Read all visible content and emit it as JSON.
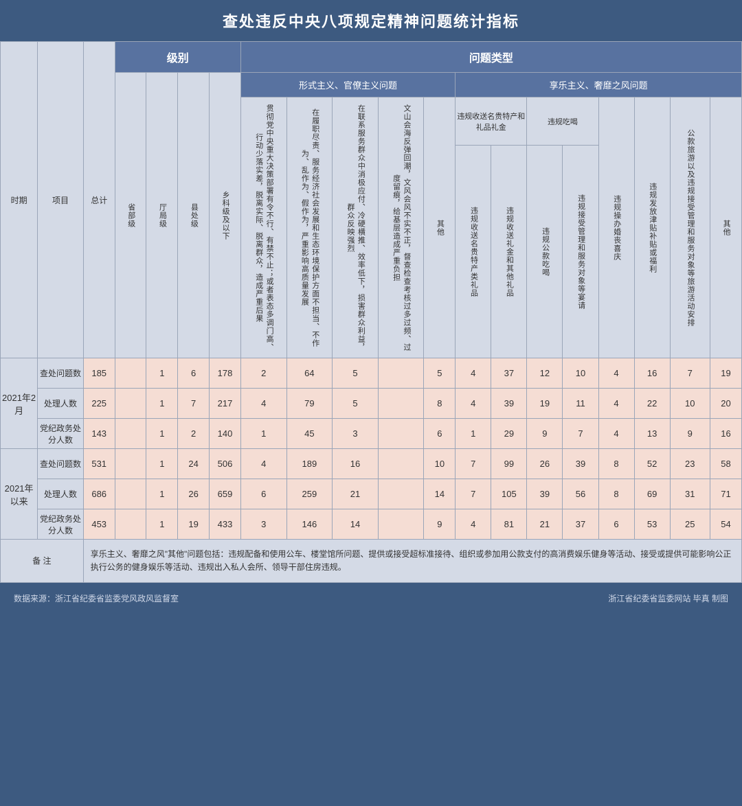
{
  "title": "查处违反中央八项规定精神问题统计指标",
  "headers": {
    "period": "时期",
    "item": "项目",
    "total": "总计",
    "level_group": "级别",
    "type_group": "问题类型",
    "sub_formalism": "形式主义、官僚主义问题",
    "sub_hedonism": "享乐主义、奢靡之风问题",
    "lv_prov": "省部级",
    "lv_bureau": "厅局级",
    "lv_county": "县处级",
    "lv_town": "乡科级及以下",
    "c1": "贯彻党中央重大决策部署有令不行、有禁不止；或者表态多调门高、行动少落实差，脱离实际、脱离群众，造成严重后果",
    "c2": "在履职尽责、服务经济社会发展和生态环境保护方面不担当、不作为、乱作为、假作为，严重影响高质量发展",
    "c3": "在联系服务群众中消极应付、冷硬横推、效率低下，损害群众利益，群众反映强烈",
    "c4": "文山会海反弹回潮，文风会风不实不正，督查检查考核过多过频、过度留痕，给基层造成严重负担",
    "c5": "其他",
    "gift_group": "违规收送名贵特产和礼品礼金",
    "c6": "违规收送名贵特产类礼品",
    "c7": "违规收送礼金和其他礼品",
    "eat_group": "违规吃喝",
    "c8": "违规公款吃喝",
    "c9": "违规接受管理和服务对象等宴请",
    "c10": "违规操办婚丧喜庆",
    "c11": "违规发放津贴补贴或福利",
    "c12": "公款旅游以及违规接受管理和服务对象等旅游活动安排",
    "c13": "其他"
  },
  "periods": [
    {
      "label": "2021年2月",
      "rows": [
        {
          "name": "查处问题数",
          "vals": [
            "185",
            "",
            "1",
            "6",
            "178",
            "2",
            "64",
            "5",
            "",
            "5",
            "4",
            "37",
            "12",
            "10",
            "4",
            "16",
            "7",
            "19"
          ]
        },
        {
          "name": "处理人数",
          "vals": [
            "225",
            "",
            "1",
            "7",
            "217",
            "4",
            "79",
            "5",
            "",
            "8",
            "4",
            "39",
            "19",
            "11",
            "4",
            "22",
            "10",
            "20"
          ]
        },
        {
          "name": "党纪政务处分人数",
          "vals": [
            "143",
            "",
            "1",
            "2",
            "140",
            "1",
            "45",
            "3",
            "",
            "6",
            "1",
            "29",
            "9",
            "7",
            "4",
            "13",
            "9",
            "16"
          ]
        }
      ]
    },
    {
      "label": "2021年以来",
      "rows": [
        {
          "name": "查处问题数",
          "vals": [
            "531",
            "",
            "1",
            "24",
            "506",
            "4",
            "189",
            "16",
            "",
            "10",
            "7",
            "99",
            "26",
            "39",
            "8",
            "52",
            "23",
            "58"
          ]
        },
        {
          "name": "处理人数",
          "vals": [
            "686",
            "",
            "1",
            "26",
            "659",
            "6",
            "259",
            "21",
            "",
            "14",
            "7",
            "105",
            "39",
            "56",
            "8",
            "69",
            "31",
            "71"
          ]
        },
        {
          "name": "党纪政务处分人数",
          "vals": [
            "453",
            "",
            "1",
            "19",
            "433",
            "3",
            "146",
            "14",
            "",
            "9",
            "4",
            "81",
            "21",
            "37",
            "6",
            "53",
            "25",
            "54"
          ]
        }
      ]
    }
  ],
  "note_label": "备 注",
  "note_text": "享乐主义、奢靡之风\"其他\"问题包括：违规配备和使用公车、楼堂馆所问题、提供或接受超标准接待、组织或参加用公款支付的高消费娱乐健身等活动、接受或提供可能影响公正执行公务的健身娱乐等活动、违规出入私人会所、领导干部住房违规。",
  "footer_left": "数据来源：浙江省纪委省监委党风政风监督室",
  "footer_right": "浙江省纪委省监委网站  毕真 制图"
}
